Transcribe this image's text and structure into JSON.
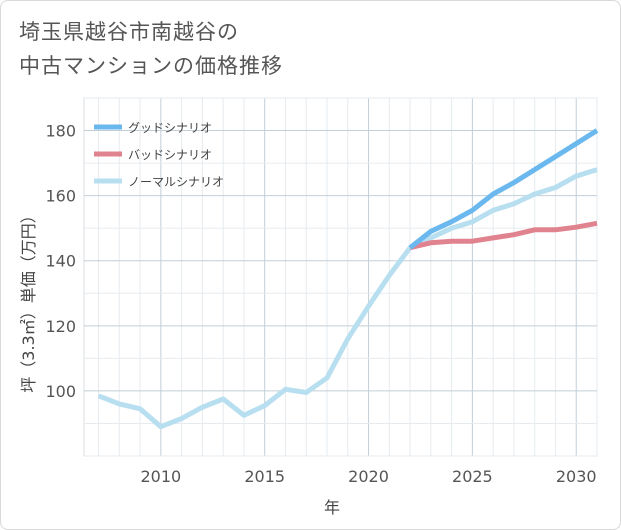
{
  "title": {
    "line1": "埼玉県越谷市南越谷の",
    "line2": "中古マンションの価格推移"
  },
  "chart_data": {
    "type": "line",
    "xlabel": "年",
    "ylabel": "坪（3.3㎡）単価（万円）",
    "xlim": [
      2006.3,
      2031
    ],
    "ylim": [
      80,
      190
    ],
    "xticks": [
      2010,
      2015,
      2020,
      2025,
      2030
    ],
    "yticks": [
      100,
      120,
      140,
      160,
      180
    ],
    "grid": true,
    "legend_position": "top-left",
    "series": [
      {
        "name": "グッドシナリオ",
        "color": "#6bb8ef",
        "x": [
          2022,
          2023,
          2024,
          2025,
          2026,
          2027,
          2028,
          2029,
          2030,
          2031
        ],
        "values": [
          144,
          149,
          152,
          155.5,
          160.5,
          164,
          168,
          172,
          176,
          180
        ]
      },
      {
        "name": "バッドシナリオ",
        "color": "#e0838f",
        "x": [
          2022,
          2023,
          2024,
          2025,
          2026,
          2027,
          2028,
          2029,
          2030,
          2031
        ],
        "values": [
          144,
          145.5,
          146,
          146,
          147,
          148,
          149.5,
          149.5,
          150.3,
          151.5
        ]
      },
      {
        "name": "ノーマルシナリオ",
        "color": "#b8dff0",
        "x": [
          2007,
          2008,
          2009,
          2010,
          2011,
          2012,
          2013,
          2014,
          2015,
          2016,
          2017,
          2018,
          2019,
          2020,
          2021,
          2022,
          2023,
          2024,
          2025,
          2026,
          2027,
          2028,
          2029,
          2030,
          2031
        ],
        "values": [
          98.5,
          96,
          94.5,
          89,
          91.5,
          95,
          97.5,
          92.5,
          95.5,
          100.5,
          99.5,
          104,
          116,
          126,
          135.5,
          144,
          147,
          150,
          152,
          155.5,
          157.5,
          160.5,
          162.5,
          166,
          168
        ]
      }
    ]
  }
}
